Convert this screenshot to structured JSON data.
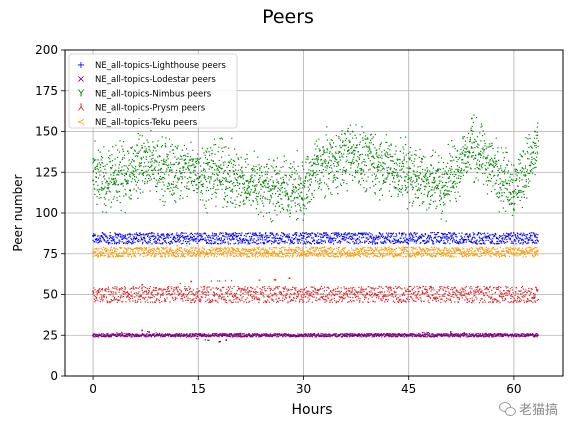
{
  "chart_data": {
    "type": "scatter",
    "title": "Peers",
    "xlabel": "Hours",
    "ylabel": "Peer number",
    "xlim": [
      -4,
      67
    ],
    "ylim": [
      0,
      200
    ],
    "xticks": [
      0,
      15,
      30,
      45,
      60
    ],
    "yticks": [
      0,
      25,
      50,
      75,
      100,
      125,
      150,
      175,
      200
    ],
    "grid": true,
    "legend_position": "top-left",
    "x_range": [
      0,
      63.5
    ],
    "series": [
      {
        "name": "NE_all-topics-Lighthouse peers",
        "marker": "+",
        "color": "#0000ff",
        "typical": 85,
        "spread": [
          81,
          88
        ],
        "points": [
          [
            0,
            86
          ],
          [
            10,
            87
          ],
          [
            20,
            84
          ],
          [
            30,
            86
          ],
          [
            40,
            85
          ],
          [
            50,
            87
          ],
          [
            63,
            86
          ]
        ]
      },
      {
        "name": "NE_all-topics-Lodestar peers",
        "marker": "x",
        "color": "#800080",
        "typical": 25,
        "spread": [
          24,
          26
        ],
        "points": [
          [
            0,
            25
          ],
          [
            7,
            28
          ],
          [
            8,
            27
          ],
          [
            18,
            21
          ],
          [
            19,
            22
          ],
          [
            21,
            26
          ],
          [
            30,
            25
          ],
          [
            51,
            27
          ],
          [
            56,
            26
          ],
          [
            63,
            25
          ]
        ]
      },
      {
        "name": "NE_all-topics-Nimbus peers",
        "marker": "1",
        "color": "#008000",
        "typical": 122,
        "spread": [
          100,
          145
        ],
        "points": [
          [
            0,
            120
          ],
          [
            3,
            118
          ],
          [
            7,
            140
          ],
          [
            10,
            130
          ],
          [
            18,
            128
          ],
          [
            22,
            115
          ],
          [
            30,
            105
          ],
          [
            32,
            135
          ],
          [
            37,
            150
          ],
          [
            45,
            125
          ],
          [
            50,
            112
          ],
          [
            54,
            158
          ],
          [
            60,
            110
          ],
          [
            63,
            150
          ]
        ]
      },
      {
        "name": "NE_all-topics-Prysm peers",
        "marker": "2",
        "color": "#d62728",
        "typical": 50,
        "spread": [
          45,
          55
        ],
        "points": [
          [
            0,
            52
          ],
          [
            7,
            56
          ],
          [
            9,
            54
          ],
          [
            14,
            58
          ],
          [
            26,
            59
          ],
          [
            28,
            60
          ],
          [
            30,
            50
          ],
          [
            45,
            52
          ],
          [
            63,
            50
          ]
        ]
      },
      {
        "name": "NE_all-topics-Teku peers",
        "marker": "3",
        "color": "#ff9900",
        "typical": 76,
        "spread": [
          73,
          79
        ],
        "points": [
          [
            0,
            76
          ],
          [
            12,
            80
          ],
          [
            20,
            78
          ],
          [
            30,
            76
          ],
          [
            33,
            79
          ],
          [
            40,
            75
          ],
          [
            50,
            77
          ],
          [
            63,
            76
          ]
        ]
      }
    ]
  },
  "watermark": {
    "text": "老猫搞"
  }
}
